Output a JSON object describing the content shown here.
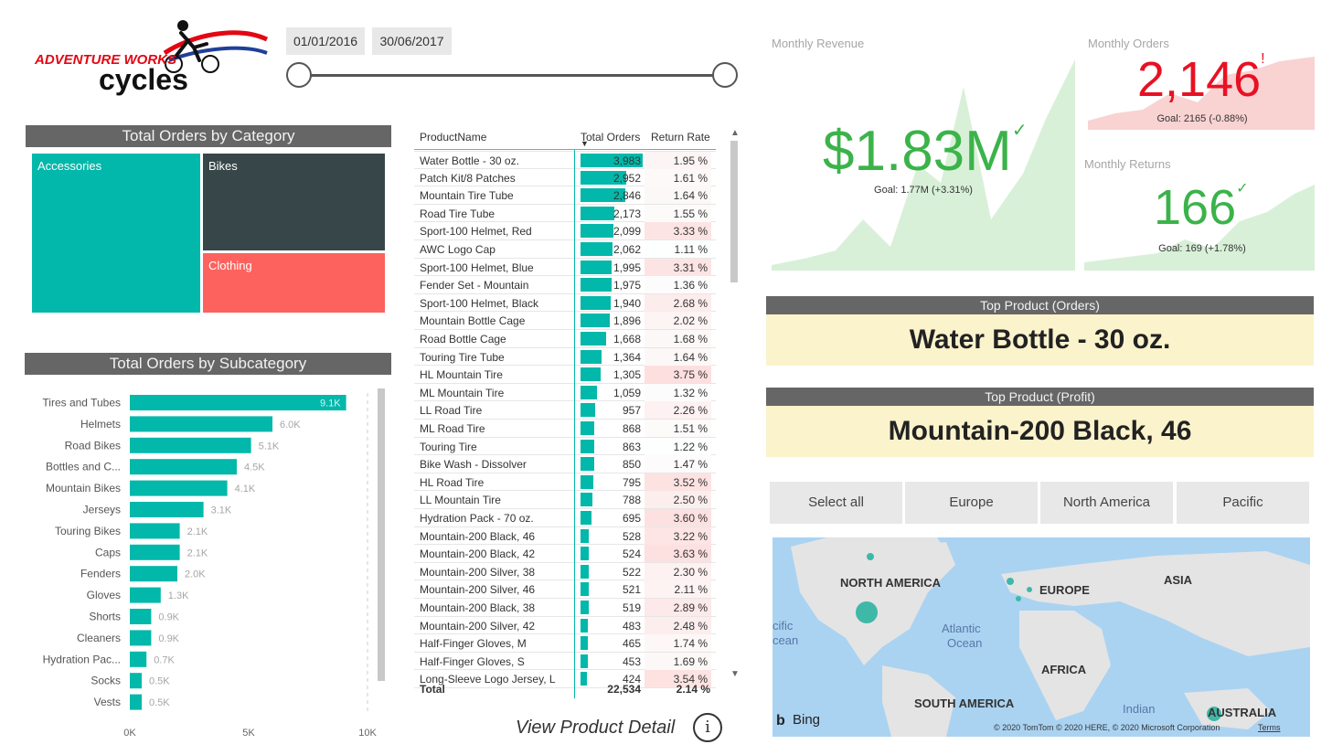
{
  "logo": {
    "line1": "ADVENTURE WORKS",
    "line2": "cycles"
  },
  "date_range": {
    "start": "01/01/2016",
    "end": "30/06/2017"
  },
  "colors": {
    "teal": "#01b8aa",
    "dark": "#374649",
    "red": "#fd625e",
    "green": "#4caf50",
    "kpi_red": "#e81123",
    "header_grey": "#666666",
    "highlight": "#fbf3cc"
  },
  "category_chart": {
    "title": "Total Orders by Category",
    "items": [
      {
        "label": "Accessories"
      },
      {
        "label": "Bikes"
      },
      {
        "label": "Clothing"
      }
    ]
  },
  "subcategory_chart": {
    "title": "Total Orders by Subcategory"
  },
  "chart_data": {
    "type": "bar",
    "orientation": "horizontal",
    "categories": [
      "Tires and Tubes",
      "Helmets",
      "Road Bikes",
      "Bottles and C...",
      "Mountain Bikes",
      "Jerseys",
      "Touring Bikes",
      "Caps",
      "Fenders",
      "Gloves",
      "Shorts",
      "Cleaners",
      "Hydration Pac...",
      "Socks",
      "Vests"
    ],
    "values": [
      9100,
      6000,
      5100,
      4500,
      4100,
      3100,
      2100,
      2100,
      2000,
      1300,
      900,
      900,
      700,
      500,
      500
    ],
    "data_labels": [
      "9.1K",
      "6.0K",
      "5.1K",
      "4.5K",
      "4.1K",
      "3.1K",
      "2.1K",
      "2.1K",
      "2.0K",
      "1.3K",
      "0.9K",
      "0.9K",
      "0.7K",
      "0.5K",
      "0.5K"
    ],
    "x_ticks": [
      "0K",
      "5K",
      "10K"
    ],
    "xlim": [
      0,
      10000
    ],
    "title": "Total Orders by Subcategory",
    "xlabel": "",
    "ylabel": ""
  },
  "product_table": {
    "headers": {
      "name": "ProductName",
      "orders": "Total Orders",
      "return_rate": "Return Rate"
    },
    "max_orders": 3983,
    "rows": [
      {
        "name": "Water Bottle - 30 oz.",
        "orders": "3,983",
        "value": 3983,
        "rr": "1.95 %",
        "rrv": 1.95
      },
      {
        "name": "Patch Kit/8 Patches",
        "orders": "2,952",
        "value": 2952,
        "rr": "1.61 %",
        "rrv": 1.61
      },
      {
        "name": "Mountain Tire Tube",
        "orders": "2,846",
        "value": 2846,
        "rr": "1.64 %",
        "rrv": 1.64
      },
      {
        "name": "Road Tire Tube",
        "orders": "2,173",
        "value": 2173,
        "rr": "1.55 %",
        "rrv": 1.55
      },
      {
        "name": "Sport-100 Helmet, Red",
        "orders": "2,099",
        "value": 2099,
        "rr": "3.33 %",
        "rrv": 3.33
      },
      {
        "name": "AWC Logo Cap",
        "orders": "2,062",
        "value": 2062,
        "rr": "1.11 %",
        "rrv": 1.11
      },
      {
        "name": "Sport-100 Helmet, Blue",
        "orders": "1,995",
        "value": 1995,
        "rr": "3.31 %",
        "rrv": 3.31
      },
      {
        "name": "Fender Set - Mountain",
        "orders": "1,975",
        "value": 1975,
        "rr": "1.36 %",
        "rrv": 1.36
      },
      {
        "name": "Sport-100 Helmet, Black",
        "orders": "1,940",
        "value": 1940,
        "rr": "2.68 %",
        "rrv": 2.68
      },
      {
        "name": "Mountain Bottle Cage",
        "orders": "1,896",
        "value": 1896,
        "rr": "2.02 %",
        "rrv": 2.02
      },
      {
        "name": "Road Bottle Cage",
        "orders": "1,668",
        "value": 1668,
        "rr": "1.68 %",
        "rrv": 1.68
      },
      {
        "name": "Touring Tire Tube",
        "orders": "1,364",
        "value": 1364,
        "rr": "1.64 %",
        "rrv": 1.64
      },
      {
        "name": "HL Mountain Tire",
        "orders": "1,305",
        "value": 1305,
        "rr": "3.75 %",
        "rrv": 3.75
      },
      {
        "name": "ML Mountain Tire",
        "orders": "1,059",
        "value": 1059,
        "rr": "1.32 %",
        "rrv": 1.32
      },
      {
        "name": "LL Road Tire",
        "orders": "957",
        "value": 957,
        "rr": "2.26 %",
        "rrv": 2.26
      },
      {
        "name": "ML Road Tire",
        "orders": "868",
        "value": 868,
        "rr": "1.51 %",
        "rrv": 1.51
      },
      {
        "name": "Touring Tire",
        "orders": "863",
        "value": 863,
        "rr": "1.22 %",
        "rrv": 1.22
      },
      {
        "name": "Bike Wash - Dissolver",
        "orders": "850",
        "value": 850,
        "rr": "1.47 %",
        "rrv": 1.47
      },
      {
        "name": "HL Road Tire",
        "orders": "795",
        "value": 795,
        "rr": "3.52 %",
        "rrv": 3.52
      },
      {
        "name": "LL Mountain Tire",
        "orders": "788",
        "value": 788,
        "rr": "2.50 %",
        "rrv": 2.5
      },
      {
        "name": "Hydration Pack - 70 oz.",
        "orders": "695",
        "value": 695,
        "rr": "3.60 %",
        "rrv": 3.6
      },
      {
        "name": "Mountain-200 Black, 46",
        "orders": "528",
        "value": 528,
        "rr": "3.22 %",
        "rrv": 3.22
      },
      {
        "name": "Mountain-200 Black, 42",
        "orders": "524",
        "value": 524,
        "rr": "3.63 %",
        "rrv": 3.63
      },
      {
        "name": "Mountain-200 Silver, 38",
        "orders": "522",
        "value": 522,
        "rr": "2.30 %",
        "rrv": 2.3
      },
      {
        "name": "Mountain-200 Silver, 46",
        "orders": "521",
        "value": 521,
        "rr": "2.11 %",
        "rrv": 2.11
      },
      {
        "name": "Mountain-200 Black, 38",
        "orders": "519",
        "value": 519,
        "rr": "2.89 %",
        "rrv": 2.89
      },
      {
        "name": "Mountain-200 Silver, 42",
        "orders": "483",
        "value": 483,
        "rr": "2.48 %",
        "rrv": 2.48
      },
      {
        "name": "Half-Finger Gloves, M",
        "orders": "465",
        "value": 465,
        "rr": "1.74 %",
        "rrv": 1.74
      },
      {
        "name": "Half-Finger Gloves, S",
        "orders": "453",
        "value": 453,
        "rr": "1.69 %",
        "rrv": 1.69
      },
      {
        "name": "Long-Sleeve Logo Jersey, L",
        "orders": "424",
        "value": 424,
        "rr": "3.54 %",
        "rrv": 3.54
      }
    ],
    "total": {
      "label": "Total",
      "orders": "22,534",
      "rr": "2.14 %"
    }
  },
  "view_detail": {
    "label": "View Product Detail",
    "info_glyph": "i"
  },
  "kpis": {
    "revenue": {
      "title": "Monthly Revenue",
      "value": "$1.83M",
      "mark": "✓",
      "goal": "Goal: 1.77M (+3.31%)"
    },
    "orders": {
      "title": "Monthly Orders",
      "value": "2,146",
      "mark": "!",
      "goal": "Goal: 2165 (-0.88%)"
    },
    "returns": {
      "title": "Monthly Returns",
      "value": "166",
      "mark": "✓",
      "goal": "Goal: 169 (+1.78%)"
    }
  },
  "top_product_orders": {
    "title": "Top Product (Orders)",
    "value": "Water Bottle - 30 oz."
  },
  "top_product_profit": {
    "title": "Top Product (Profit)",
    "value": "Mountain-200 Black, 46"
  },
  "regions": [
    {
      "label": "Select all"
    },
    {
      "label": "Europe"
    },
    {
      "label": "North America"
    },
    {
      "label": "Pacific"
    }
  ],
  "map": {
    "labels": {
      "north_america": "NORTH AMERICA",
      "europe": "EUROPE",
      "asia": "ASIA",
      "africa": "AFRICA",
      "south_america": "SOUTH AMERICA",
      "australia": "AUSTRALIA",
      "atlantic1": "Atlantic",
      "atlantic2": "Ocean",
      "pacific1": "cific",
      "pacific2": "cean",
      "indian": "Indian"
    },
    "brand": "Bing",
    "copyright": "© 2020 TomTom © 2020 HERE, © 2020 Microsoft Corporation",
    "terms": "Terms"
  }
}
